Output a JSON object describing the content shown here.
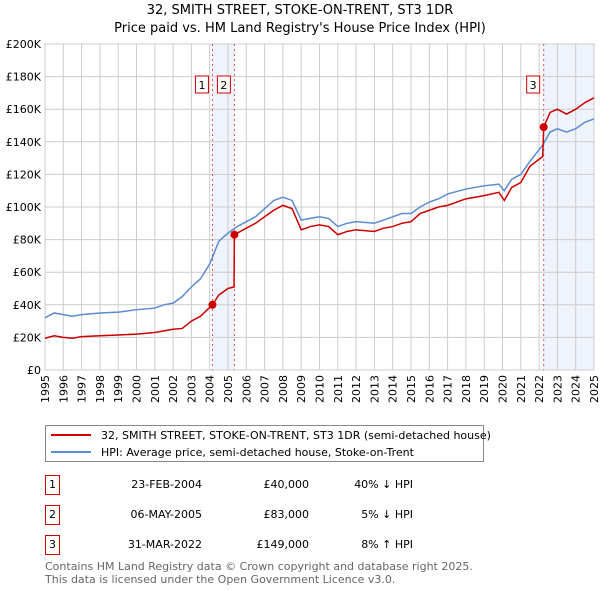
{
  "chart_data": {
    "type": "line",
    "title": "32, SMITH STREET, STOKE-ON-TRENT, ST3 1DR",
    "subtitle": "Price paid vs. HM Land Registry's House Price Index (HPI)",
    "xlim": [
      1995,
      2025
    ],
    "ylim": [
      0,
      200000
    ],
    "x_ticks": [
      "1995",
      "1996",
      "1997",
      "1998",
      "1999",
      "2000",
      "2001",
      "2002",
      "2003",
      "2004",
      "2005",
      "2006",
      "2007",
      "2008",
      "2009",
      "2010",
      "2011",
      "2012",
      "2013",
      "2014",
      "2015",
      "2016",
      "2017",
      "2018",
      "2019",
      "2020",
      "2021",
      "2022",
      "2023",
      "2024",
      "2025"
    ],
    "y_ticks": [
      {
        "v": 0,
        "l": "£0"
      },
      {
        "v": 20000,
        "l": "£20K"
      },
      {
        "v": 40000,
        "l": "£40K"
      },
      {
        "v": 60000,
        "l": "£60K"
      },
      {
        "v": 80000,
        "l": "£80K"
      },
      {
        "v": 100000,
        "l": "£100K"
      },
      {
        "v": 120000,
        "l": "£120K"
      },
      {
        "v": 140000,
        "l": "£140K"
      },
      {
        "v": 160000,
        "l": "£160K"
      },
      {
        "v": 180000,
        "l": "£180K"
      },
      {
        "v": 200000,
        "l": "£200K"
      }
    ],
    "grid": true,
    "series": [
      {
        "name": "32, SMITH STREET, STOKE-ON-TRENT, ST3 1DR (semi-detached house)",
        "color": "#cc0000",
        "points": [
          [
            1995,
            19500
          ],
          [
            1995.5,
            21000
          ],
          [
            1996,
            20000
          ],
          [
            1996.5,
            19500
          ],
          [
            1997,
            20500
          ],
          [
            1998,
            21000
          ],
          [
            1999,
            21500
          ],
          [
            2000,
            22000
          ],
          [
            2001,
            23000
          ],
          [
            2001.5,
            24000
          ],
          [
            2002,
            25000
          ],
          [
            2002.5,
            25500
          ],
          [
            2003,
            30000
          ],
          [
            2003.5,
            33000
          ],
          [
            2004.15,
            40000
          ],
          [
            2004.5,
            46000
          ],
          [
            2005,
            50000
          ],
          [
            2005.33,
            51000
          ],
          [
            2005.35,
            83000
          ],
          [
            2006,
            87000
          ],
          [
            2006.5,
            90000
          ],
          [
            2007,
            94000
          ],
          [
            2007.5,
            98000
          ],
          [
            2008,
            101000
          ],
          [
            2008.5,
            99000
          ],
          [
            2009,
            86000
          ],
          [
            2009.5,
            88000
          ],
          [
            2010,
            89000
          ],
          [
            2010.5,
            88000
          ],
          [
            2011,
            83000
          ],
          [
            2011.5,
            85000
          ],
          [
            2012,
            86000
          ],
          [
            2013,
            85000
          ],
          [
            2013.5,
            87000
          ],
          [
            2014,
            88000
          ],
          [
            2014.5,
            90000
          ],
          [
            2015,
            91000
          ],
          [
            2015.5,
            96000
          ],
          [
            2016,
            98000
          ],
          [
            2016.5,
            100000
          ],
          [
            2017,
            101000
          ],
          [
            2018,
            105000
          ],
          [
            2019,
            107000
          ],
          [
            2019.8,
            109000
          ],
          [
            2020.1,
            104000
          ],
          [
            2020.5,
            112000
          ],
          [
            2021,
            115000
          ],
          [
            2021.5,
            125000
          ],
          [
            2022.2,
            131000
          ],
          [
            2022.25,
            149000
          ],
          [
            2022.6,
            158000
          ],
          [
            2023,
            160000
          ],
          [
            2023.5,
            157000
          ],
          [
            2024,
            160000
          ],
          [
            2024.5,
            164000
          ],
          [
            2025,
            167000
          ]
        ]
      },
      {
        "name": "HPI: Average price, semi-detached house, Stoke-on-Trent",
        "color": "#5b8bd0",
        "points": [
          [
            1995,
            32000
          ],
          [
            1995.5,
            35000
          ],
          [
            1996,
            34000
          ],
          [
            1996.5,
            33000
          ],
          [
            1997,
            34000
          ],
          [
            1998,
            35000
          ],
          [
            1999,
            35500
          ],
          [
            2000,
            37000
          ],
          [
            2001,
            38000
          ],
          [
            2001.5,
            40000
          ],
          [
            2002,
            41000
          ],
          [
            2002.5,
            45000
          ],
          [
            2003,
            51000
          ],
          [
            2003.5,
            56000
          ],
          [
            2004,
            65000
          ],
          [
            2004.5,
            79000
          ],
          [
            2005,
            84000
          ],
          [
            2005.5,
            88000
          ],
          [
            2006,
            91000
          ],
          [
            2006.5,
            94000
          ],
          [
            2007,
            99000
          ],
          [
            2007.5,
            104000
          ],
          [
            2008,
            106000
          ],
          [
            2008.5,
            104000
          ],
          [
            2009,
            92000
          ],
          [
            2009.5,
            93000
          ],
          [
            2010,
            94000
          ],
          [
            2010.5,
            93000
          ],
          [
            2011,
            88000
          ],
          [
            2011.5,
            90000
          ],
          [
            2012,
            91000
          ],
          [
            2013,
            90000
          ],
          [
            2013.5,
            92000
          ],
          [
            2014,
            94000
          ],
          [
            2014.5,
            96000
          ],
          [
            2015,
            96000
          ],
          [
            2015.5,
            100000
          ],
          [
            2016,
            103000
          ],
          [
            2016.5,
            105000
          ],
          [
            2017,
            108000
          ],
          [
            2018,
            111000
          ],
          [
            2019,
            113000
          ],
          [
            2019.8,
            114000
          ],
          [
            2020.1,
            110000
          ],
          [
            2020.5,
            117000
          ],
          [
            2021,
            120000
          ],
          [
            2021.5,
            128000
          ],
          [
            2022.2,
            138000
          ],
          [
            2022.6,
            146000
          ],
          [
            2023,
            148000
          ],
          [
            2023.5,
            146000
          ],
          [
            2024,
            148000
          ],
          [
            2024.5,
            152000
          ],
          [
            2025,
            154000
          ]
        ]
      }
    ],
    "sales": [
      {
        "n": "1",
        "x": 2004.15,
        "y": 40000
      },
      {
        "n": "2",
        "x": 2005.35,
        "y": 83000
      },
      {
        "n": "3",
        "x": 2022.25,
        "y": 149000
      }
    ],
    "shaded": [
      [
        2004.15,
        2005.35
      ],
      [
        2022.25,
        2025
      ]
    ]
  },
  "legend": [
    "32, SMITH STREET, STOKE-ON-TRENT, ST3 1DR (semi-detached house)",
    "HPI: Average price, semi-detached house, Stoke-on-Trent"
  ],
  "table": [
    {
      "n": "1",
      "date": "23-FEB-2004",
      "price": "£40,000",
      "hpi": "40% ↓ HPI"
    },
    {
      "n": "2",
      "date": "06-MAY-2005",
      "price": "£83,000",
      "hpi": "5% ↓ HPI"
    },
    {
      "n": "3",
      "date": "31-MAR-2022",
      "price": "£149,000",
      "hpi": "8% ↑ HPI"
    }
  ],
  "footer": [
    "Contains HM Land Registry data © Crown copyright and database right 2025.",
    "This data is licensed under the Open Government Licence v3.0."
  ]
}
